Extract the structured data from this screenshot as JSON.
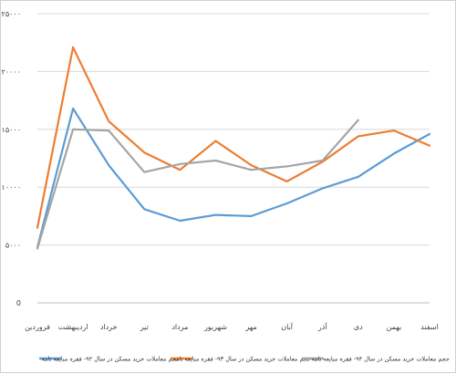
{
  "chart_data": {
    "type": "line",
    "title": "",
    "xlabel": "",
    "ylabel": "",
    "ylim": [
      0,
      25000
    ],
    "yticks": [
      {
        "value": 0,
        "label": "0"
      },
      {
        "value": 5000,
        "label": "۵۰۰۰"
      },
      {
        "value": 10000,
        "label": "۱۰۰۰۰"
      },
      {
        "value": 15000,
        "label": "۱۵۰۰۰"
      },
      {
        "value": 20000,
        "label": "۲۰۰۰۰"
      },
      {
        "value": 25000,
        "label": "۲۵۰۰۰"
      }
    ],
    "categories": [
      "فروردین",
      "اردیبهشت",
      "خرداد",
      "تیر",
      "مرداد",
      "شهریور",
      "مهر",
      "آبان",
      "آذر",
      "دی",
      "بهمن",
      "اسفند"
    ],
    "grid": true,
    "legend_position": "bottom",
    "series": [
      {
        "name": "حجم معاملات خرید مسکن در سال ۹۲- فقره مبایعه نامه",
        "color": "#5b9bd5",
        "values": [
          4800,
          16800,
          11900,
          8100,
          7100,
          7600,
          7500,
          8600,
          9900,
          10900,
          12900,
          14600
        ]
      },
      {
        "name": "حجم معاملات خرید مسکن در سال ۹۳- فقره مبایعه نامه",
        "color": "#ed7d31",
        "values": [
          6500,
          22100,
          15700,
          13000,
          11500,
          14000,
          11900,
          10500,
          12200,
          14400,
          14900,
          13600
        ]
      },
      {
        "name": "حجم معاملات خرید مسکن در سال ۹۴- فقره مبایعه نامه",
        "color": "#a5a5a5",
        "values": [
          4700,
          15000,
          14900,
          11300,
          12000,
          12300,
          11500,
          11800,
          12300,
          15800,
          null,
          null
        ]
      }
    ]
  }
}
